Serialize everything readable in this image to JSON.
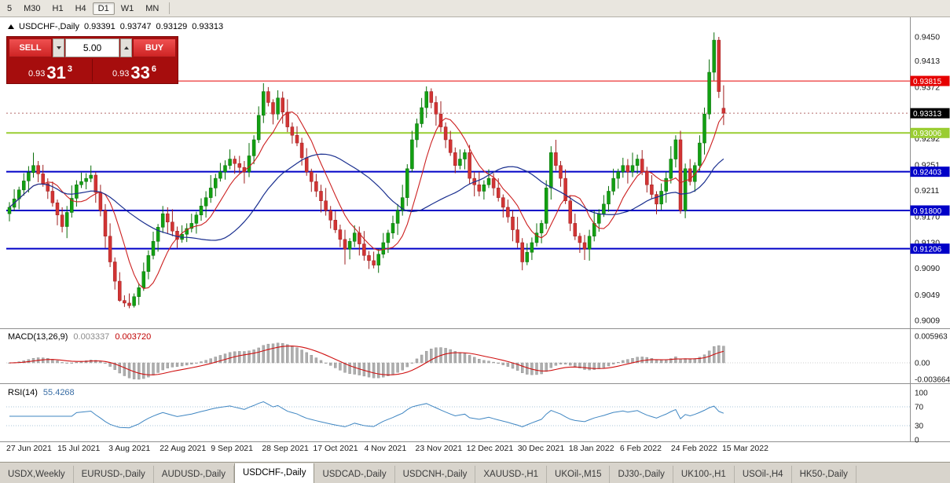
{
  "toolbar": {
    "timeframes": [
      "5",
      "M30",
      "H1",
      "H4",
      "D1",
      "W1",
      "MN"
    ],
    "active": "D1"
  },
  "chart": {
    "symbol": "USDCHF-,Daily",
    "ohlc_label": {
      "open": "0.93391",
      "high": "0.93747",
      "low": "0.93129",
      "close": "0.93313"
    },
    "trade_panel": {
      "sell_label": "SELL",
      "buy_label": "BUY",
      "volume": "5.00",
      "sell_price_small": "0.93",
      "sell_price_big": "31",
      "sell_price_sup": "3",
      "buy_price_small": "0.93",
      "buy_price_big": "33",
      "buy_price_sup": "6"
    },
    "hlines": [
      {
        "price": 0.93815,
        "label": "0.93815",
        "color": "#e60000",
        "width": 1
      },
      {
        "price": 0.93006,
        "label": "0.93006",
        "color": "#9acd32",
        "width": 2
      },
      {
        "price": 0.92403,
        "label": "0.92403",
        "color": "#0000c8",
        "width": 2
      },
      {
        "price": 0.918,
        "label": "0.91800",
        "color": "#0000c8",
        "width": 2
      },
      {
        "price": 0.91206,
        "label": "0.91206",
        "color": "#0000c8",
        "width": 2
      }
    ],
    "bid": {
      "price": 0.93313,
      "label": "0.93313",
      "color": "#000000"
    },
    "axis_ticks": [
      "0.9450",
      "0.9413",
      "0.9372",
      "0.9331",
      "0.9292",
      "0.9251",
      "0.9211",
      "0.9170",
      "0.9130",
      "0.9090",
      "0.9049",
      "0.9009"
    ]
  },
  "macd": {
    "title": "MACD(13,26,9)",
    "value1": "0.003337",
    "value2": "0.003720",
    "axis_labels": [
      "0.005963",
      "0.00",
      "-0.003664"
    ]
  },
  "rsi": {
    "title": "RSI(14)",
    "value": "55.4268",
    "axis_labels": [
      "100",
      "70",
      "30",
      "0"
    ]
  },
  "dates": [
    "27 Jun 2021",
    "15 Jul 2021",
    "3 Aug 2021",
    "22 Aug 2021",
    "9 Sep 2021",
    "28 Sep 2021",
    "17 Oct 2021",
    "4 Nov 2021",
    "23 Nov 2021",
    "12 Dec 2021",
    "30 Dec 2021",
    "18 Jan 2022",
    "6 Feb 2022",
    "24 Feb 2022",
    "15 Mar 2022"
  ],
  "tabs": {
    "active": "USDCHF-,Daily",
    "items": [
      "USDX,Weekly",
      "EURUSD-,Daily",
      "AUDUSD-,Daily",
      "USDCHF-,Daily",
      "USDCAD-,Daily",
      "USDCNH-,Daily",
      "XAUUSD-,H1",
      "UKOil-,M15",
      "DJ30-,Daily",
      "UK100-,H1",
      "USOil-,H4",
      "HK50-,Daily"
    ]
  },
  "chart_data": {
    "type": "candlestick",
    "title": "USDCHF-,Daily",
    "x_labels": [
      "27 Jun 2021",
      "15 Jul 2021",
      "3 Aug 2021",
      "22 Aug 2021",
      "9 Sep 2021",
      "28 Sep 2021",
      "17 Oct 2021",
      "4 Nov 2021",
      "23 Nov 2021",
      "12 Dec 2021",
      "30 Dec 2021",
      "18 Jan 2022",
      "6 Feb 2022",
      "24 Feb 2022",
      "15 Mar 2022"
    ],
    "ylim": [
      0.9009,
      0.9455
    ],
    "last_price": 0.93313,
    "hlines": [
      0.93815,
      0.93006,
      0.92403,
      0.918,
      0.91206
    ],
    "indicators": [
      {
        "type": "MACD",
        "params": "13,26,9",
        "last_main": 0.003337,
        "last_signal": 0.00372,
        "axis": [
          0.005963,
          0.0,
          -0.003664
        ]
      },
      {
        "type": "RSI",
        "params": "14",
        "last": 55.4268,
        "levels": [
          70,
          30
        ]
      },
      {
        "type": "MA",
        "color": "red",
        "speed": "fast"
      },
      {
        "type": "MA",
        "color": "blue",
        "speed": "slow"
      }
    ],
    "ohlc": [
      [
        0.9175,
        0.9193,
        0.9163,
        0.9185
      ],
      [
        0.9185,
        0.9213,
        0.9179,
        0.9198
      ],
      [
        0.9198,
        0.9217,
        0.9182,
        0.9212
      ],
      [
        0.9212,
        0.9238,
        0.9203,
        0.9226
      ],
      [
        0.9226,
        0.9249,
        0.9208,
        0.9239
      ],
      [
        0.9239,
        0.927,
        0.9231,
        0.925
      ],
      [
        0.925,
        0.9257,
        0.9224,
        0.9237
      ],
      [
        0.9237,
        0.9251,
        0.9217,
        0.9222
      ],
      [
        0.9222,
        0.923,
        0.9198,
        0.921
      ],
      [
        0.921,
        0.9225,
        0.9186,
        0.9192
      ],
      [
        0.9192,
        0.9197,
        0.9157,
        0.9173
      ],
      [
        0.9173,
        0.9185,
        0.9146,
        0.9155
      ],
      [
        0.9155,
        0.9187,
        0.9137,
        0.9177
      ],
      [
        0.9177,
        0.9219,
        0.9169,
        0.9199
      ],
      [
        0.9199,
        0.9227,
        0.9186,
        0.922
      ],
      [
        0.922,
        0.9239,
        0.9215,
        0.9225
      ],
      [
        0.9225,
        0.9238,
        0.9213,
        0.923
      ],
      [
        0.923,
        0.925,
        0.9224,
        0.9235
      ],
      [
        0.9235,
        0.924,
        0.9192,
        0.9208
      ],
      [
        0.9208,
        0.922,
        0.9171,
        0.918
      ],
      [
        0.918,
        0.919,
        0.9122,
        0.914
      ],
      [
        0.914,
        0.916,
        0.9092,
        0.91
      ],
      [
        0.91,
        0.9107,
        0.9057,
        0.907
      ],
      [
        0.907,
        0.9084,
        0.9038,
        0.904
      ],
      [
        0.904,
        0.9048,
        0.903,
        0.9036
      ],
      [
        0.9036,
        0.9051,
        0.9028,
        0.9032
      ],
      [
        0.9032,
        0.9051,
        0.9029,
        0.9046
      ],
      [
        0.9046,
        0.9067,
        0.9033,
        0.906
      ],
      [
        0.906,
        0.9099,
        0.9055,
        0.9085
      ],
      [
        0.9085,
        0.9118,
        0.9073,
        0.911
      ],
      [
        0.911,
        0.9147,
        0.9104,
        0.9132
      ],
      [
        0.9132,
        0.9159,
        0.9116,
        0.9154
      ],
      [
        0.9154,
        0.9187,
        0.9145,
        0.9175
      ],
      [
        0.9175,
        0.9185,
        0.9144,
        0.9162
      ],
      [
        0.9162,
        0.9182,
        0.914,
        0.9148
      ],
      [
        0.9148,
        0.9155,
        0.9122,
        0.9135
      ],
      [
        0.9135,
        0.9157,
        0.913,
        0.9143
      ],
      [
        0.9143,
        0.916,
        0.9131,
        0.9152
      ],
      [
        0.9152,
        0.9175,
        0.9146,
        0.916
      ],
      [
        0.916,
        0.9178,
        0.9144,
        0.9173
      ],
      [
        0.9173,
        0.9199,
        0.9164,
        0.9187
      ],
      [
        0.9187,
        0.921,
        0.9169,
        0.92
      ],
      [
        0.92,
        0.9235,
        0.9192,
        0.9215
      ],
      [
        0.9215,
        0.9237,
        0.9202,
        0.923
      ],
      [
        0.923,
        0.9254,
        0.9225,
        0.924
      ],
      [
        0.924,
        0.9258,
        0.9228,
        0.925
      ],
      [
        0.925,
        0.9275,
        0.9244,
        0.926
      ],
      [
        0.926,
        0.9265,
        0.9237,
        0.9253
      ],
      [
        0.9253,
        0.9265,
        0.9238,
        0.9247
      ],
      [
        0.9247,
        0.9257,
        0.9222,
        0.924
      ],
      [
        0.924,
        0.9285,
        0.9232,
        0.9265
      ],
      [
        0.9265,
        0.9297,
        0.9252,
        0.929
      ],
      [
        0.929,
        0.9342,
        0.9285,
        0.9328
      ],
      [
        0.9328,
        0.9378,
        0.9316,
        0.9365
      ],
      [
        0.9365,
        0.9372,
        0.9342,
        0.9348
      ],
      [
        0.9348,
        0.9353,
        0.9314,
        0.933
      ],
      [
        0.933,
        0.9367,
        0.9321,
        0.9355
      ],
      [
        0.9355,
        0.9365,
        0.9315,
        0.9333
      ],
      [
        0.9333,
        0.9353,
        0.9302,
        0.931
      ],
      [
        0.931,
        0.9317,
        0.9284,
        0.9297
      ],
      [
        0.9297,
        0.9311,
        0.928,
        0.9285
      ],
      [
        0.9285,
        0.9293,
        0.925,
        0.9262
      ],
      [
        0.9262,
        0.9277,
        0.9234,
        0.924
      ],
      [
        0.924,
        0.9245,
        0.9209,
        0.9225
      ],
      [
        0.9225,
        0.9237,
        0.9201,
        0.921
      ],
      [
        0.921,
        0.922,
        0.9177,
        0.9195
      ],
      [
        0.9195,
        0.9215,
        0.9172,
        0.918
      ],
      [
        0.918,
        0.9187,
        0.9152,
        0.9165
      ],
      [
        0.9165,
        0.9179,
        0.9145,
        0.915
      ],
      [
        0.915,
        0.9158,
        0.9123,
        0.9135
      ],
      [
        0.9135,
        0.915,
        0.9096,
        0.912
      ],
      [
        0.912,
        0.9137,
        0.9104,
        0.9132
      ],
      [
        0.9132,
        0.9157,
        0.9123,
        0.9145
      ],
      [
        0.9145,
        0.9155,
        0.911,
        0.9128
      ],
      [
        0.9128,
        0.9148,
        0.9102,
        0.911
      ],
      [
        0.911,
        0.9117,
        0.9089,
        0.9102
      ],
      [
        0.9102,
        0.9116,
        0.909,
        0.9095
      ],
      [
        0.9095,
        0.912,
        0.9083,
        0.9112
      ],
      [
        0.9112,
        0.9145,
        0.9106,
        0.913
      ],
      [
        0.913,
        0.915,
        0.9114,
        0.9145
      ],
      [
        0.9145,
        0.9172,
        0.9136,
        0.916
      ],
      [
        0.916,
        0.919,
        0.9142,
        0.918
      ],
      [
        0.918,
        0.922,
        0.9172,
        0.92
      ],
      [
        0.92,
        0.9252,
        0.9187,
        0.9245
      ],
      [
        0.9245,
        0.9304,
        0.924,
        0.929
      ],
      [
        0.929,
        0.9323,
        0.9278,
        0.9315
      ],
      [
        0.9315,
        0.9355,
        0.9309,
        0.934
      ],
      [
        0.934,
        0.9373,
        0.9324,
        0.9365
      ],
      [
        0.9365,
        0.937,
        0.9339,
        0.9348
      ],
      [
        0.9348,
        0.9358,
        0.9312,
        0.933
      ],
      [
        0.933,
        0.935,
        0.9302,
        0.931
      ],
      [
        0.931,
        0.9317,
        0.9277,
        0.929
      ],
      [
        0.929,
        0.9304,
        0.9265,
        0.927
      ],
      [
        0.927,
        0.9278,
        0.9238,
        0.925
      ],
      [
        0.925,
        0.9275,
        0.9244,
        0.926
      ],
      [
        0.926,
        0.9275,
        0.9244,
        0.927
      ],
      [
        0.927,
        0.9282,
        0.9221,
        0.923
      ],
      [
        0.923,
        0.924,
        0.9202,
        0.922
      ],
      [
        0.922,
        0.924,
        0.9202,
        0.921
      ],
      [
        0.921,
        0.9227,
        0.9197,
        0.922
      ],
      [
        0.922,
        0.9244,
        0.9215,
        0.923
      ],
      [
        0.923,
        0.9238,
        0.9203,
        0.9215
      ],
      [
        0.9215,
        0.923,
        0.9194,
        0.92
      ],
      [
        0.92,
        0.9205,
        0.9169,
        0.9185
      ],
      [
        0.9185,
        0.9197,
        0.9161,
        0.917
      ],
      [
        0.917,
        0.918,
        0.9132,
        0.915
      ],
      [
        0.915,
        0.917,
        0.9122,
        0.913
      ],
      [
        0.913,
        0.9137,
        0.9087,
        0.91
      ],
      [
        0.91,
        0.9129,
        0.9095,
        0.9115
      ],
      [
        0.9115,
        0.9138,
        0.9103,
        0.913
      ],
      [
        0.913,
        0.916,
        0.9124,
        0.9145
      ],
      [
        0.9145,
        0.9165,
        0.9129,
        0.916
      ],
      [
        0.916,
        0.9227,
        0.9151,
        0.9215
      ],
      [
        0.9215,
        0.928,
        0.9197,
        0.927
      ],
      [
        0.927,
        0.929,
        0.9242,
        0.925
      ],
      [
        0.925,
        0.9257,
        0.9217,
        0.923
      ],
      [
        0.923,
        0.9244,
        0.919,
        0.9195
      ],
      [
        0.9195,
        0.9203,
        0.9148,
        0.916
      ],
      [
        0.916,
        0.9175,
        0.9134,
        0.914
      ],
      [
        0.914,
        0.9145,
        0.9114,
        0.913
      ],
      [
        0.913,
        0.9142,
        0.9103,
        0.912
      ],
      [
        0.912,
        0.915,
        0.9102,
        0.914
      ],
      [
        0.914,
        0.918,
        0.9132,
        0.916
      ],
      [
        0.916,
        0.9182,
        0.9147,
        0.9175
      ],
      [
        0.9175,
        0.9204,
        0.917,
        0.919
      ],
      [
        0.919,
        0.9218,
        0.9178,
        0.921
      ],
      [
        0.921,
        0.9245,
        0.9204,
        0.923
      ],
      [
        0.923,
        0.9245,
        0.9214,
        0.924
      ],
      [
        0.924,
        0.9262,
        0.9231,
        0.925
      ],
      [
        0.925,
        0.926,
        0.9222,
        0.924
      ],
      [
        0.924,
        0.927,
        0.9232,
        0.925
      ],
      [
        0.925,
        0.9267,
        0.9237,
        0.926
      ],
      [
        0.926,
        0.9274,
        0.9235,
        0.924
      ],
      [
        0.924,
        0.9248,
        0.9208,
        0.922
      ],
      [
        0.922,
        0.9235,
        0.9199,
        0.9205
      ],
      [
        0.9205,
        0.921,
        0.9174,
        0.919
      ],
      [
        0.919,
        0.9222,
        0.9181,
        0.921
      ],
      [
        0.921,
        0.924,
        0.9192,
        0.923
      ],
      [
        0.923,
        0.928,
        0.9222,
        0.926
      ],
      [
        0.926,
        0.9297,
        0.9247,
        0.929
      ],
      [
        0.929,
        0.9304,
        0.9175,
        0.918
      ],
      [
        0.918,
        0.9253,
        0.9168,
        0.9245
      ],
      [
        0.9245,
        0.926,
        0.9219,
        0.9225
      ],
      [
        0.9225,
        0.9255,
        0.9209,
        0.925
      ],
      [
        0.925,
        0.9297,
        0.9241,
        0.9285
      ],
      [
        0.9285,
        0.934,
        0.9267,
        0.933
      ],
      [
        0.933,
        0.9415,
        0.9322,
        0.9395
      ],
      [
        0.9395,
        0.9457,
        0.9382,
        0.9445
      ],
      [
        0.9445,
        0.945,
        0.9355,
        0.9365
      ],
      [
        0.93391,
        0.93747,
        0.93129,
        0.93313
      ]
    ]
  }
}
